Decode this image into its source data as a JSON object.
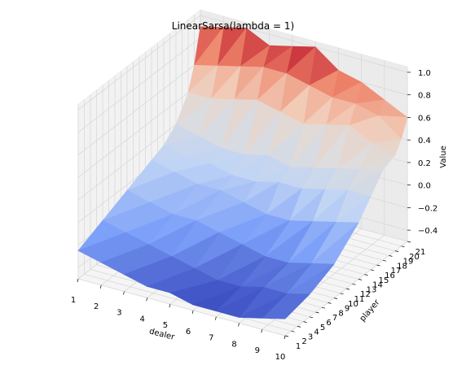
{
  "chart_data": {
    "type": "surface",
    "title": "LinearSarsa(lambda = 1)",
    "xlabel": "dealer",
    "ylabel": "player",
    "zlabel": "Value",
    "x_ticks": [
      1,
      2,
      3,
      4,
      5,
      6,
      7,
      8,
      9,
      10
    ],
    "y_ticks": [
      1,
      2,
      3,
      4,
      5,
      6,
      7,
      8,
      9,
      10,
      11,
      12,
      13,
      14,
      15,
      16,
      17,
      18,
      19,
      20,
      21
    ],
    "z_ticks": [
      "1.0",
      "0.8",
      "0.6",
      "0.4",
      "0.2",
      "0.0",
      "−0.2",
      "−0.4"
    ],
    "xlim": [
      1,
      10
    ],
    "ylim": [
      1,
      21
    ],
    "zlim": [
      -0.5,
      1.05
    ],
    "colormap": "coolwarm",
    "colormap_stops": [
      "#3b4cc0",
      "#7b9ff9",
      "#c0d4f5",
      "#dddddd",
      "#f2cbb7",
      "#ee8468",
      "#b40426"
    ],
    "grid": true,
    "pane_color": "#f2f2f2",
    "grid_color": "#d9d9d9",
    "surface": {
      "dealer_values": [
        1,
        2,
        3,
        4,
        5,
        6,
        7,
        8,
        9,
        10
      ],
      "player_values": [
        1,
        5,
        9,
        13,
        15,
        17,
        19,
        20,
        21
      ],
      "z_by_player_row": [
        [
          -0.25,
          -0.3,
          -0.35,
          -0.4,
          -0.4,
          -0.45,
          -0.45,
          -0.45,
          -0.4,
          -0.35
        ],
        [
          -0.15,
          -0.2,
          -0.25,
          -0.3,
          -0.35,
          -0.4,
          -0.4,
          -0.35,
          -0.35,
          -0.3
        ],
        [
          -0.05,
          -0.1,
          -0.15,
          -0.15,
          -0.2,
          -0.25,
          -0.3,
          -0.3,
          -0.25,
          -0.2
        ],
        [
          0.05,
          0.0,
          -0.05,
          -0.05,
          -0.1,
          -0.15,
          -0.15,
          -0.1,
          -0.05,
          0.0
        ],
        [
          0.1,
          0.05,
          0.05,
          0.0,
          0.0,
          0.05,
          0.05,
          0.1,
          0.15,
          0.15
        ],
        [
          0.2,
          0.15,
          0.1,
          0.1,
          0.15,
          0.1,
          0.15,
          0.2,
          0.25,
          0.3
        ],
        [
          0.4,
          0.4,
          0.45,
          0.5,
          0.45,
          0.4,
          0.45,
          0.5,
          0.4,
          0.35
        ],
        [
          0.6,
          0.65,
          0.7,
          0.75,
          0.75,
          0.7,
          0.65,
          0.65,
          0.6,
          0.45
        ],
        [
          0.9,
          0.95,
          1.0,
          0.9,
          0.95,
          1.0,
          0.85,
          0.8,
          0.7,
          0.6
        ]
      ]
    }
  }
}
